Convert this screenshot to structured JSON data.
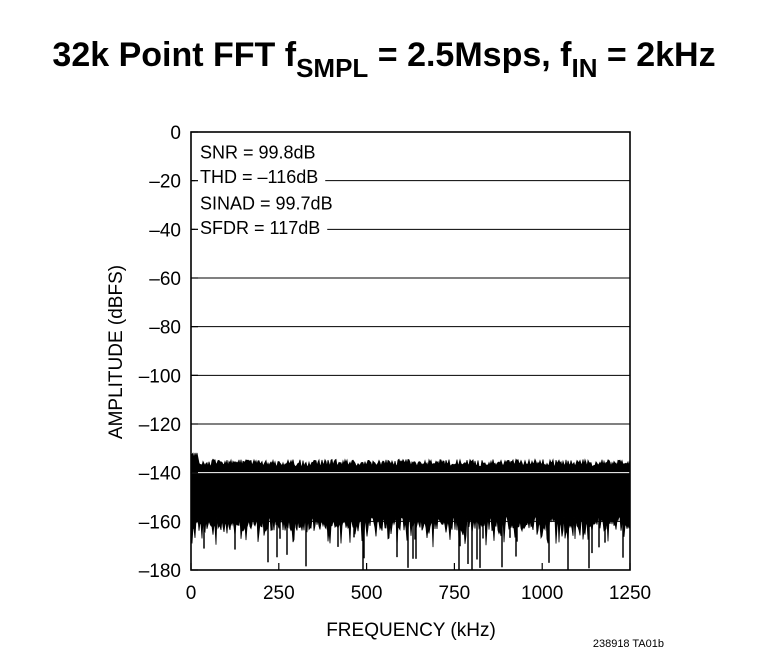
{
  "chart_data": {
    "type": "line",
    "title": {
      "main": "32k Point FFT f",
      "sub1": "SMPL",
      "mid": " = 2.5Msps, f",
      "sub2": "IN",
      "end": " = 2kHz"
    },
    "xlabel": "FREQUENCY (kHz)",
    "ylabel": "AMPLITUDE (dBFS)",
    "xlim": [
      0,
      1250
    ],
    "ylim": [
      -180,
      0
    ],
    "x_ticks": [
      0,
      250,
      500,
      750,
      1000,
      1250
    ],
    "x_tick_labels": [
      "0",
      "250",
      "500",
      "750",
      "1000",
      "1250"
    ],
    "y_ticks": [
      0,
      -20,
      -40,
      -60,
      -80,
      -100,
      -120,
      -140,
      -160,
      -180
    ],
    "y_tick_labels": [
      "0",
      "–20",
      "–40",
      "–60",
      "–80",
      "–100",
      "–120",
      "–140",
      "–160",
      "–180"
    ],
    "grid": true,
    "annotations": [
      "SNR = 99.8dB",
      "THD = –116dB",
      "SINAD = 99.7dB",
      "SFDR = 117dB"
    ],
    "noise_floor": {
      "top_dbfs": -136,
      "dense_bottom_dbfs": -158,
      "spur_min_dbfs": -180,
      "x_range_khz": [
        0,
        1250
      ]
    },
    "figure_code": "238918 TA01b",
    "color": "#000000"
  }
}
